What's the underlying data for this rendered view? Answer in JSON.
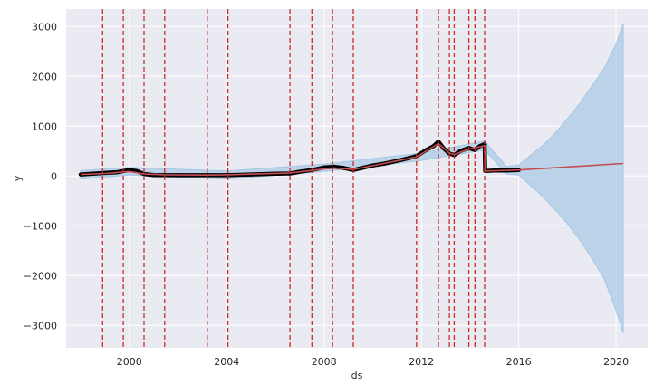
{
  "chart_data": {
    "type": "line",
    "xlabel": "ds",
    "ylabel": "y",
    "xlim": [
      1997.4,
      2021.3
    ],
    "ylim": [
      -3450,
      3350
    ],
    "grid": true,
    "colors": {
      "background": "#eaeaf2",
      "grid": "#ffffff",
      "observed": "#000000",
      "trend": "#c44e52",
      "forecast": "#c44e52",
      "uncertainty": "#a6c8e4",
      "changepoint": "#cc2b2b"
    },
    "x_ticks": [
      {
        "value": 2000,
        "label": "2000"
      },
      {
        "value": 2004,
        "label": "2004"
      },
      {
        "value": 2008,
        "label": "2008"
      },
      {
        "value": 2012,
        "label": "2012"
      },
      {
        "value": 2016,
        "label": "2016"
      },
      {
        "value": 2020,
        "label": "2020"
      }
    ],
    "y_ticks": [
      {
        "value": 3000,
        "label": "3000"
      },
      {
        "value": 2000,
        "label": "2000"
      },
      {
        "value": 1000,
        "label": "1000"
      },
      {
        "value": 0,
        "label": "0"
      },
      {
        "value": -1000,
        "label": "−1000"
      },
      {
        "value": -2000,
        "label": "−2000"
      },
      {
        "value": -3000,
        "label": "−3000"
      }
    ],
    "changepoints": [
      1998.9,
      1999.75,
      2000.6,
      2001.45,
      2003.2,
      2004.05,
      2006.6,
      2007.5,
      2008.35,
      2009.2,
      2011.8,
      2012.7,
      2013.15,
      2013.35,
      2013.95,
      2014.2,
      2014.6
    ],
    "series": [
      {
        "x": [
          1998.0,
          1998.5,
          1999.0,
          1999.5,
          2000.0,
          2000.3,
          2000.6,
          2001.0,
          2002.0,
          2003.0,
          2004.0,
          2005.0,
          2006.0,
          2006.6,
          2007.0,
          2007.5,
          2008.0,
          2008.4,
          2008.8,
          2009.2,
          2009.6,
          2010.0,
          2010.5,
          2011.0,
          2011.5,
          2011.8,
          2012.2,
          2012.5,
          2012.7,
          2012.9,
          2013.15,
          2013.35,
          2013.6,
          2013.95,
          2014.2,
          2014.4,
          2014.6,
          2014.62,
          2015.0,
          2015.5,
          2016.0
        ],
        "values": [
          30,
          45,
          60,
          75,
          120,
          100,
          40,
          20,
          15,
          15,
          15,
          30,
          45,
          50,
          85,
          120,
          170,
          185,
          160,
          120,
          165,
          210,
          250,
          300,
          360,
          400,
          520,
          600,
          690,
          560,
          450,
          420,
          500,
          560,
          520,
          600,
          640,
          100,
          110,
          110,
          120
        ]
      },
      {
        "x": [
          1998.0,
          1999.0,
          2000.0,
          2000.6,
          2001.45,
          2003.2,
          2004.05,
          2006.6,
          2007.5,
          2008.35,
          2009.2,
          2011.8,
          2012.7,
          2013.15,
          2013.35,
          2013.95,
          2014.2,
          2014.6,
          2014.62,
          2016.0,
          2018.0,
          2020.3
        ],
        "values": [
          30,
          50,
          90,
          40,
          25,
          20,
          25,
          60,
          110,
          160,
          130,
          380,
          650,
          460,
          430,
          540,
          560,
          610,
          100,
          120,
          180,
          250
        ]
      }
    ],
    "uncertainty": {
      "x": [
        1998.0,
        2000.0,
        2004.0,
        2008.0,
        2012.0,
        2014.6,
        2015.5,
        2016.0,
        2016.5,
        2017.0,
        2017.5,
        2018.0,
        2018.5,
        2019.0,
        2019.5,
        2020.0,
        2020.3
      ],
      "upper": [
        110,
        170,
        100,
        240,
        460,
        700,
        190,
        220,
        420,
        620,
        860,
        1150,
        1450,
        1800,
        2150,
        2650,
        3060
      ],
      "lower": [
        -60,
        20,
        -60,
        90,
        310,
        520,
        40,
        20,
        -200,
        -420,
        -680,
        -960,
        -1280,
        -1650,
        -2050,
        -2700,
        -3150
      ]
    }
  }
}
